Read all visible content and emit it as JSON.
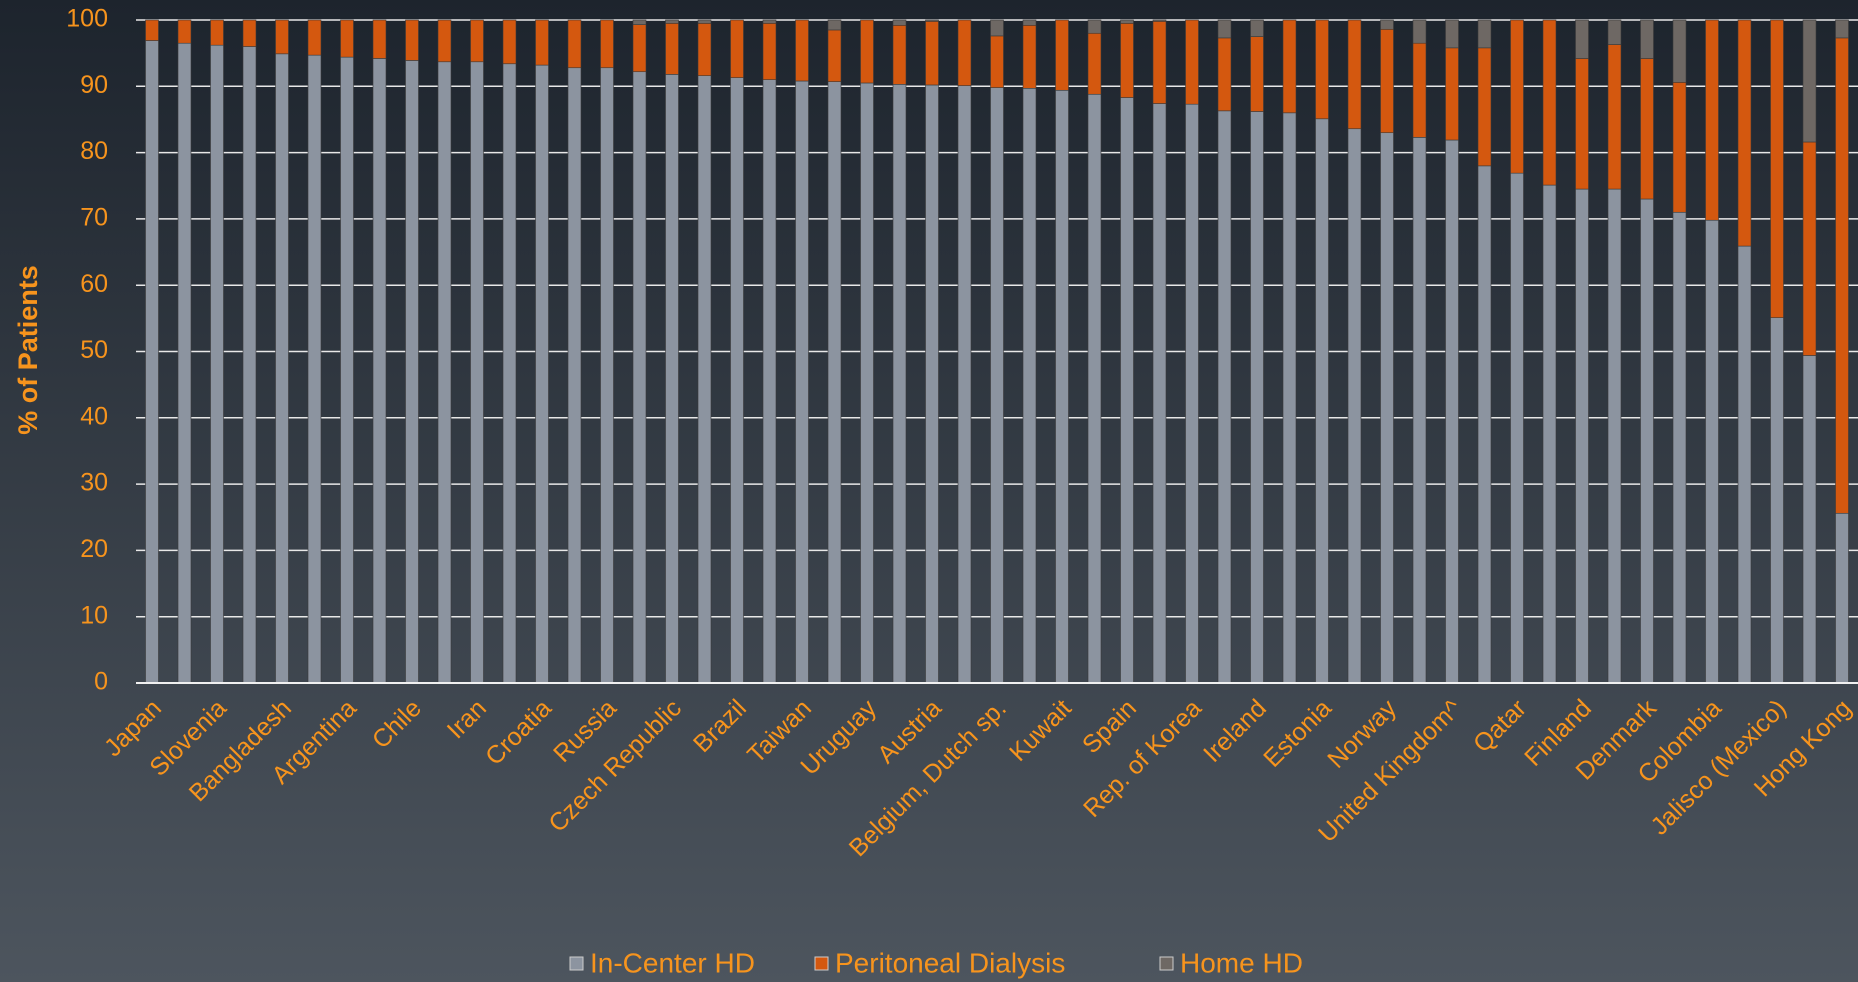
{
  "chart_data": {
    "type": "stacked_bar",
    "y_label": "% of Patients",
    "categories": [
      "Japan",
      null,
      "Slovenia",
      null,
      "Bangladesh",
      null,
      "Argentina",
      null,
      "Chile",
      null,
      "Iran",
      null,
      "Croatia",
      null,
      "Russia",
      null,
      "Czech Republic",
      null,
      "Brazil",
      null,
      "Taiwan",
      null,
      "Uruguay",
      null,
      "Austria",
      null,
      "Belgium, Dutch sp.",
      null,
      "Kuwait",
      null,
      "Spain",
      null,
      "Rep. of Korea",
      null,
      "Ireland",
      null,
      "Estonia",
      null,
      "Norway",
      null,
      "United Kingdom^",
      null,
      "Qatar",
      null,
      "Finland",
      null,
      "Denmark",
      null,
      "Colombia",
      null,
      "Jalisco (Mexico)",
      null,
      "Hong Kong"
    ],
    "series": [
      {
        "name": "In-Center HD",
        "color": "#8c94a0",
        "values": [
          96.9,
          96.5,
          96.2,
          96.0,
          94.9,
          94.7,
          94.4,
          94.2,
          93.9,
          93.7,
          93.7,
          93.4,
          93.2,
          92.8,
          92.8,
          92.2,
          91.8,
          91.6,
          91.3,
          91.0,
          90.8,
          90.7,
          90.5,
          90.3,
          90.2,
          90.1,
          89.8,
          89.7,
          89.4,
          88.8,
          88.3,
          87.4,
          87.3,
          86.3,
          86.2,
          86.0,
          85.1,
          83.6,
          83.0,
          82.3,
          81.9,
          78.0,
          76.9,
          75.1,
          74.5,
          74.5,
          73.0,
          71.0,
          69.8,
          65.9,
          55.1,
          49.4,
          25.6
        ]
      },
      {
        "name": "Peritoneal Dialysis",
        "color": "#d4580f",
        "values": [
          3.1,
          3.5,
          3.8,
          4.0,
          5.1,
          5.3,
          5.6,
          5.8,
          6.1,
          6.3,
          6.3,
          6.6,
          6.8,
          7.2,
          7.2,
          7.1,
          7.7,
          7.9,
          8.7,
          8.5,
          9.2,
          7.8,
          9.5,
          8.9,
          9.6,
          9.9,
          7.8,
          9.5,
          10.6,
          9.2,
          11.2,
          12.4,
          12.7,
          11.0,
          11.3,
          14.0,
          14.9,
          16.4,
          15.6,
          14.2,
          13.9,
          17.8,
          23.1,
          24.9,
          19.7,
          21.8,
          21.2,
          19.6,
          30.2,
          34.1,
          44.9,
          32.2,
          71.7
        ]
      },
      {
        "name": "Home HD",
        "color": "#6e6864",
        "values": [
          0,
          0,
          0,
          0,
          0,
          0,
          0,
          0,
          0,
          0,
          0,
          0,
          0,
          0,
          0,
          0.7,
          0.5,
          0.5,
          0,
          0.5,
          0,
          1.5,
          0,
          0.8,
          0.2,
          0,
          2.4,
          0.8,
          0,
          2.0,
          0.5,
          0.2,
          0,
          2.7,
          2.5,
          0,
          0,
          0,
          1.4,
          3.5,
          4.2,
          4.2,
          0,
          0,
          5.8,
          3.7,
          5.8,
          9.4,
          0,
          0,
          0,
          18.4,
          2.7
        ]
      }
    ],
    "ylim": [
      0,
      100
    ],
    "yticks": [
      0,
      10,
      20,
      30,
      40,
      50,
      60,
      70,
      80,
      90,
      100
    ],
    "grid": true,
    "legend": "bottom"
  }
}
